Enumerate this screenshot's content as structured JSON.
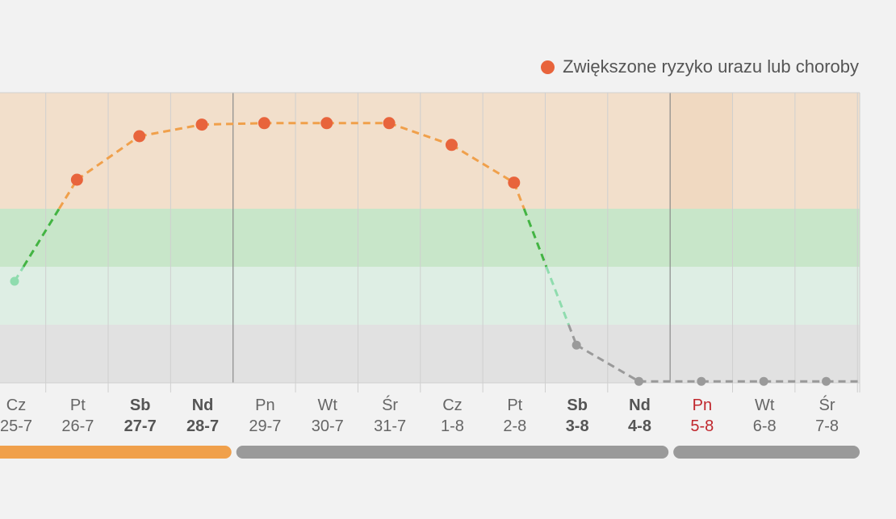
{
  "legend": {
    "label": "Zwiększone ryzyko urazu lub choroby",
    "color": "#e8643c"
  },
  "colors": {
    "band_high": "#f2dfcb",
    "band_good": "#c8e6c9",
    "band_mid": "#deeee4",
    "band_low": "#e1e1e1",
    "line_high": "#f0a04b",
    "line_good": "#43b443",
    "line_mid": "#8fdcae",
    "line_low": "#9a9a9a",
    "point_high": "#e8643c",
    "point_mid": "#8fdcae",
    "point_low": "#9a9a9a",
    "bar_past": "#f0a04b",
    "bar_week": "#9a9a9a"
  },
  "chart_data": {
    "type": "line",
    "title": "",
    "xlabel": "",
    "ylabel": "",
    "ylim": [
      0,
      100
    ],
    "grid": true,
    "legend_position": "top-right",
    "bands": [
      {
        "name": "high",
        "from": 60,
        "to": 100
      },
      {
        "name": "good",
        "from": 40,
        "to": 60
      },
      {
        "name": "mid",
        "from": 20,
        "to": 40
      },
      {
        "name": "low",
        "from": 0,
        "to": 20
      }
    ],
    "days": [
      {
        "day": "Cz",
        "date": "25-7",
        "value": 35,
        "style": "normal"
      },
      {
        "day": "Pt",
        "date": "26-7",
        "value": 70,
        "style": "normal"
      },
      {
        "day": "Sb",
        "date": "27-7",
        "value": 85,
        "style": "weekend"
      },
      {
        "day": "Nd",
        "date": "28-7",
        "value": 89,
        "style": "weekend"
      },
      {
        "day": "Pn",
        "date": "29-7",
        "value": 89.5,
        "style": "normal"
      },
      {
        "day": "Wt",
        "date": "30-7",
        "value": 89.5,
        "style": "normal"
      },
      {
        "day": "Śr",
        "date": "31-7",
        "value": 89.5,
        "style": "normal"
      },
      {
        "day": "Cz",
        "date": "1-8",
        "value": 82,
        "style": "normal"
      },
      {
        "day": "Pt",
        "date": "2-8",
        "value": 69,
        "style": "normal"
      },
      {
        "day": "Sb",
        "date": "3-8",
        "value": 13,
        "style": "weekend"
      },
      {
        "day": "Nd",
        "date": "4-8",
        "value": 0.5,
        "style": "weekend"
      },
      {
        "day": "Pn",
        "date": "5-8",
        "value": 0.5,
        "style": "holiday"
      },
      {
        "day": "Wt",
        "date": "6-8",
        "value": 0.5,
        "style": "normal"
      },
      {
        "day": "Śr",
        "date": "7-8",
        "value": 0.5,
        "style": "normal"
      }
    ],
    "week_separators_after": [
      3,
      10
    ],
    "week_bars": [
      {
        "from": 0,
        "to": 3,
        "kind": "past"
      },
      {
        "from": 4,
        "to": 10,
        "kind": "week"
      },
      {
        "from": 11,
        "to": 13,
        "kind": "week"
      }
    ]
  }
}
